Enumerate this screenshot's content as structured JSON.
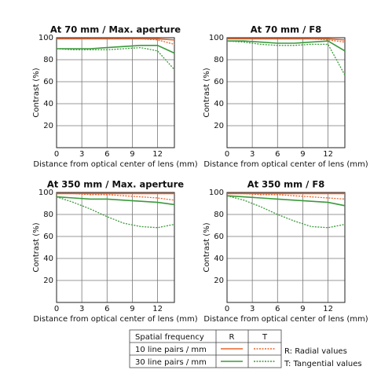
{
  "chart_data": [
    {
      "type": "line",
      "title": "At 70 mm / Max. aperture",
      "xlabel": "Distance from optical center of lens (mm)",
      "ylabel": "Contrast (%)",
      "x": [
        0,
        2,
        4,
        6,
        8,
        10,
        12,
        14
      ],
      "xlim": [
        0,
        14
      ],
      "ylim": [
        0,
        100
      ],
      "xticks": [
        0,
        3,
        6,
        9,
        12
      ],
      "yticks": [
        20,
        40,
        60,
        80,
        100
      ],
      "grid": true,
      "series": [
        {
          "color": "#e8642c",
          "dash": false,
          "values": [
            99,
            99,
            99,
            99,
            99,
            99,
            99,
            98
          ]
        },
        {
          "color": "#e8642c",
          "dash": true,
          "values": [
            99,
            99,
            99,
            99,
            99,
            99,
            98,
            94
          ]
        },
        {
          "color": "#3a9a3a",
          "dash": false,
          "values": [
            90,
            90,
            90,
            91,
            92,
            93,
            93,
            86
          ]
        },
        {
          "color": "#3a9a3a",
          "dash": true,
          "values": [
            90,
            89,
            89,
            89,
            90,
            91,
            88,
            71
          ]
        }
      ]
    },
    {
      "type": "line",
      "title": "At 70 mm / F8",
      "xlabel": "Distance from optical center of lens (mm)",
      "ylabel": "Contrast (%)",
      "x": [
        0,
        2,
        4,
        6,
        8,
        10,
        12,
        14
      ],
      "xlim": [
        0,
        14
      ],
      "ylim": [
        0,
        100
      ],
      "xticks": [
        0,
        3,
        6,
        9,
        12
      ],
      "yticks": [
        20,
        40,
        60,
        80,
        100
      ],
      "grid": true,
      "series": [
        {
          "color": "#e8642c",
          "dash": false,
          "values": [
            99,
            99,
            99,
            99,
            99,
            99,
            99,
            98
          ]
        },
        {
          "color": "#e8642c",
          "dash": true,
          "values": [
            99,
            99,
            99,
            99,
            99,
            99,
            98,
            96
          ]
        },
        {
          "color": "#3a9a3a",
          "dash": false,
          "values": [
            97,
            97,
            96,
            95,
            95,
            96,
            97,
            88
          ]
        },
        {
          "color": "#3a9a3a",
          "dash": true,
          "values": [
            97,
            96,
            94,
            93,
            93,
            94,
            94,
            66
          ]
        }
      ]
    },
    {
      "type": "line",
      "title": "At 350 mm / Max. aperture",
      "xlabel": "Distance from optical center of lens (mm)",
      "ylabel": "Contrast (%)",
      "x": [
        0,
        2,
        4,
        6,
        8,
        10,
        12,
        14
      ],
      "xlim": [
        0,
        14
      ],
      "ylim": [
        0,
        100
      ],
      "xticks": [
        0,
        3,
        6,
        9,
        12
      ],
      "yticks": [
        20,
        40,
        60,
        80,
        100
      ],
      "grid": true,
      "series": [
        {
          "color": "#e8642c",
          "dash": false,
          "values": [
            99,
            99,
            99,
            99,
            99,
            99,
            99,
            99
          ]
        },
        {
          "color": "#e8642c",
          "dash": true,
          "values": [
            99,
            99,
            98,
            98,
            97,
            96,
            95,
            93
          ]
        },
        {
          "color": "#3a9a3a",
          "dash": false,
          "values": [
            96,
            95,
            94,
            94,
            93,
            92,
            91,
            89
          ]
        },
        {
          "color": "#3a9a3a",
          "dash": true,
          "values": [
            96,
            91,
            85,
            78,
            72,
            69,
            68,
            71
          ]
        }
      ]
    },
    {
      "type": "line",
      "title": "At 350 mm / F8",
      "xlabel": "Distance from optical center of lens (mm)",
      "ylabel": "Contrast (%)",
      "x": [
        0,
        2,
        4,
        6,
        8,
        10,
        12,
        14
      ],
      "xlim": [
        0,
        14
      ],
      "ylim": [
        0,
        100
      ],
      "xticks": [
        0,
        3,
        6,
        9,
        12
      ],
      "yticks": [
        20,
        40,
        60,
        80,
        100
      ],
      "grid": true,
      "series": [
        {
          "color": "#e8642c",
          "dash": false,
          "values": [
            99,
            99,
            99,
            99,
            99,
            99,
            99,
            99
          ]
        },
        {
          "color": "#e8642c",
          "dash": true,
          "values": [
            99,
            99,
            98,
            98,
            97,
            96,
            95,
            94
          ]
        },
        {
          "color": "#3a9a3a",
          "dash": false,
          "values": [
            97,
            96,
            95,
            94,
            93,
            92,
            91,
            88
          ]
        },
        {
          "color": "#3a9a3a",
          "dash": true,
          "values": [
            97,
            93,
            87,
            80,
            74,
            69,
            68,
            71
          ]
        }
      ]
    }
  ],
  "legend": {
    "header": "Spatial frequency",
    "columns": [
      "R",
      "T"
    ],
    "rows": [
      "10 line pairs / mm",
      "30 line pairs / mm"
    ],
    "notes": [
      "R: Radial values",
      "T: Tangential values"
    ]
  }
}
